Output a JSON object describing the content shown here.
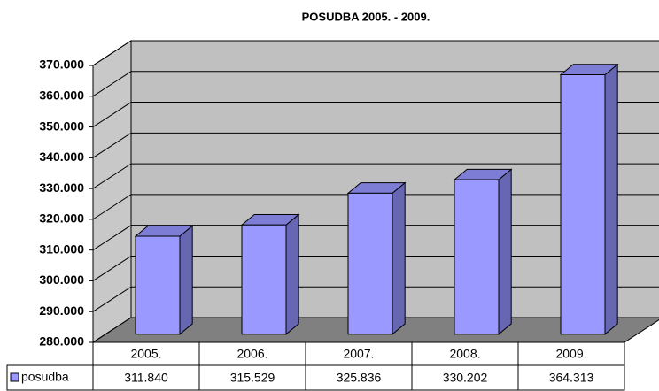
{
  "chart_data": {
    "type": "bar3d",
    "title": "POSUDBA 2005. - 2009.",
    "categories": [
      "2005.",
      "2006.",
      "2007.",
      "2008.",
      "2009."
    ],
    "series": [
      {
        "name": "posudba",
        "color": "#9999ff",
        "values": [
          311840,
          315529,
          325836,
          330202,
          364313
        ],
        "value_labels": [
          "311.840",
          "315.529",
          "325.836",
          "330.202",
          "364.313"
        ]
      }
    ],
    "ylim": [
      280000,
      370000
    ],
    "yticks": [
      {
        "value": 280000,
        "label": "280.000"
      },
      {
        "value": 290000,
        "label": "290.000"
      },
      {
        "value": 300000,
        "label": "300.000"
      },
      {
        "value": 310000,
        "label": "310.000"
      },
      {
        "value": 320000,
        "label": "320.000"
      },
      {
        "value": 330000,
        "label": "330.000"
      },
      {
        "value": 340000,
        "label": "340.000"
      },
      {
        "value": 350000,
        "label": "350.000"
      },
      {
        "value": 360000,
        "label": "360.000"
      },
      {
        "value": 370000,
        "label": "370.000"
      }
    ],
    "grid": true
  }
}
